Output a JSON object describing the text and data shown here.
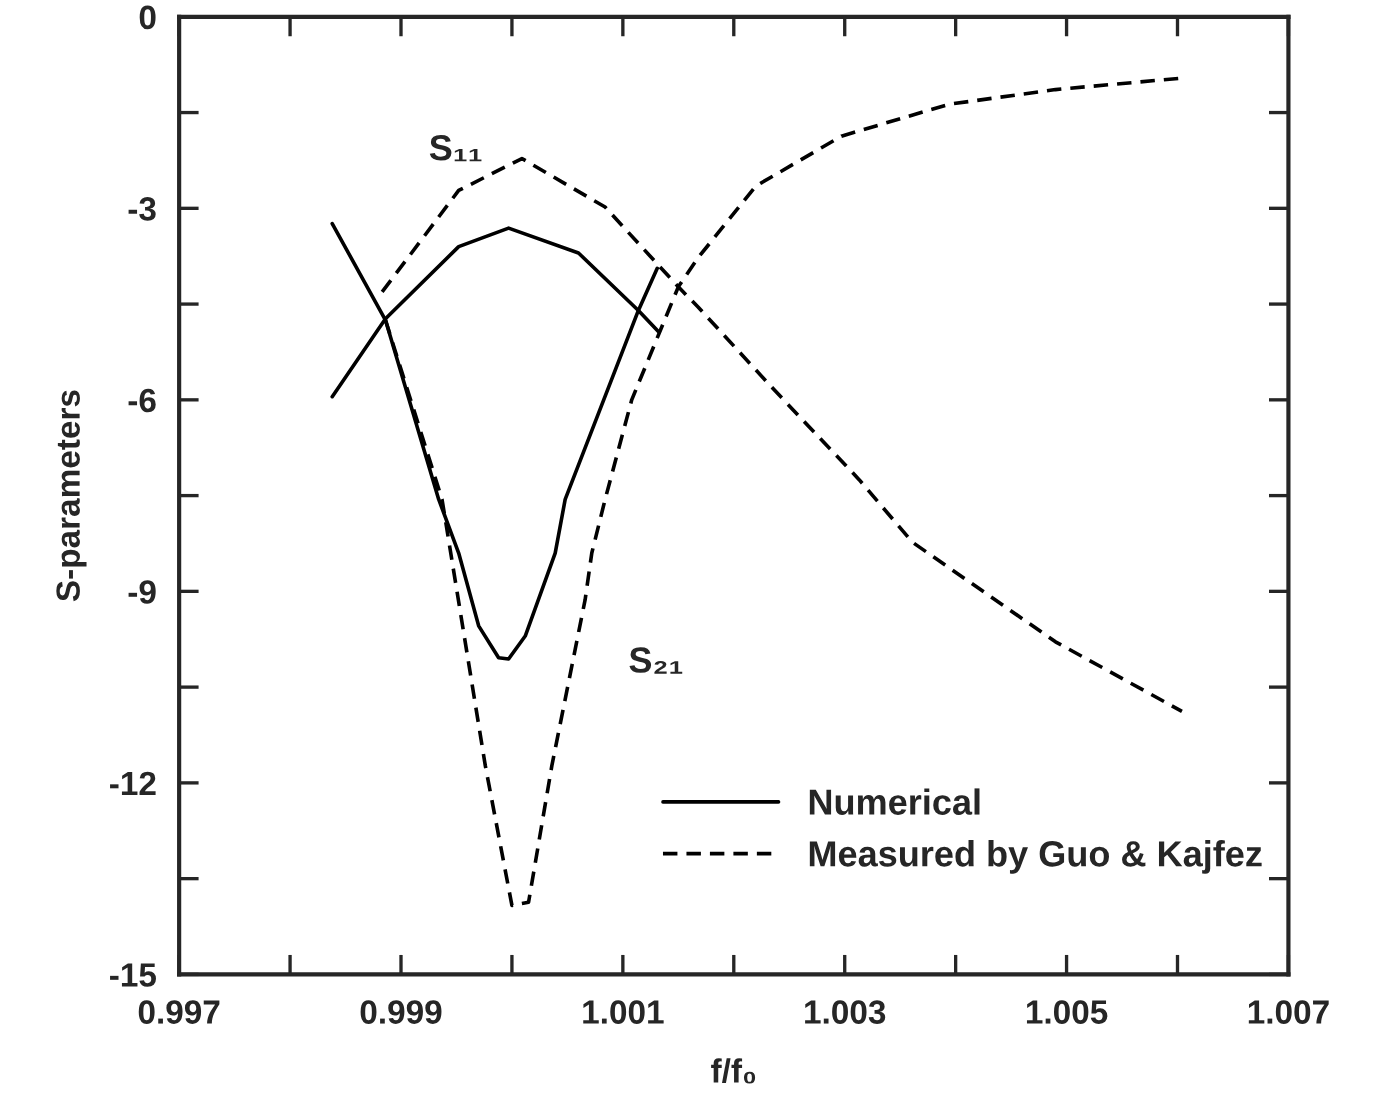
{
  "chart_data": {
    "type": "line",
    "xlabel": "f/f₀",
    "ylabel": "S-parameters",
    "xlim": [
      0.997,
      1.007
    ],
    "ylim": [
      -15,
      0
    ],
    "xticks": [
      0.997,
      {
        "value": 0.998,
        "label": null
      },
      0.999,
      {
        "value": 1.0,
        "label": null
      },
      1.001,
      {
        "value": 1.002,
        "label": null
      },
      1.003,
      {
        "value": 1.004,
        "label": null
      },
      1.005,
      {
        "value": 1.006,
        "label": null
      },
      1.007
    ],
    "yticks": [
      -15,
      {
        "value": -13.5,
        "label": null
      },
      -12,
      {
        "value": -10.5,
        "label": null
      },
      -9,
      {
        "value": -7.5,
        "label": null
      },
      -6,
      {
        "value": -4.5,
        "label": null
      },
      -3,
      {
        "value": -1.5,
        "label": null
      },
      0
    ],
    "grid": false,
    "legend": "bottom right",
    "marker": "none",
    "series": [
      {
        "name": "Numerical",
        "color": "#000000",
        "line_style": "solid",
        "x": [
          0.99838,
          0.99886,
          0.99952,
          0.99997,
          1.0006,
          1.00114,
          1.00132
        ],
        "values": [
          -5.95,
          -4.73,
          -3.6,
          -3.31,
          -3.7,
          -4.6,
          -4.93
        ]
      },
      {
        "color": "#000000",
        "line_style": "solid",
        "x": [
          0.99838,
          0.99886,
          0.99934,
          0.99952,
          0.9997,
          0.99988,
          0.99997,
          1.00012,
          1.00039,
          1.00048,
          1.00114,
          1.00131
        ],
        "values": [
          -3.24,
          -4.75,
          -7.56,
          -8.4,
          -9.54,
          -10.04,
          -10.06,
          -9.7,
          -8.4,
          -7.56,
          -4.6,
          -3.94
        ]
      },
      {
        "name": "Measured by Guo & Kajfez",
        "color": "#000000",
        "line_style": "dashed",
        "x": [
          0.99883,
          0.99952,
          1.00009,
          1.00084,
          1.0015,
          1.00168,
          1.00233,
          1.00313,
          1.00361,
          1.0049,
          1.00604
        ],
        "values": [
          -4.31,
          -2.72,
          -2.22,
          -2.98,
          -4.23,
          -4.55,
          -5.78,
          -7.25,
          -8.23,
          -9.79,
          -10.88
        ]
      },
      {
        "color": "#000000",
        "line_style": "dashed",
        "x": [
          0.99886,
          0.99937,
          0.99976,
          1.0,
          1.00015,
          1.00036,
          1.00066,
          1.00072,
          1.00084,
          1.00108,
          1.0015,
          1.00168,
          1.0022,
          1.00297,
          1.00394,
          1.0049,
          1.00604
        ],
        "values": [
          -4.75,
          -7.56,
          -11.73,
          -13.92,
          -13.87,
          -11.73,
          -9.13,
          -8.4,
          -7.56,
          -6.0,
          -4.23,
          -3.77,
          -2.65,
          -1.87,
          -1.37,
          -1.14,
          -0.96
        ]
      }
    ],
    "annotations": [
      "S₁₁",
      "S₂₁"
    ]
  }
}
